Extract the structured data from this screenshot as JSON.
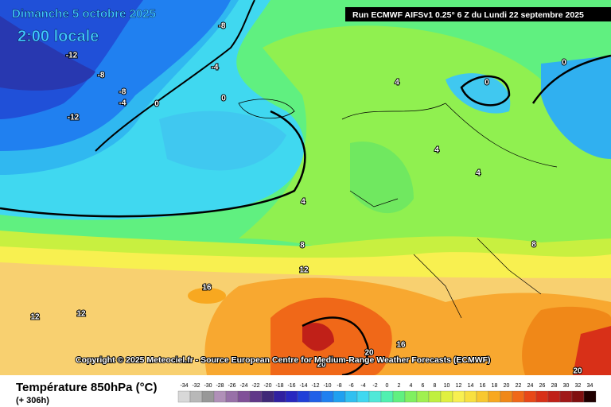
{
  "header": {
    "date": "Dimanche 5 octobre 2025",
    "time": "2:00 locale",
    "run": "Run ECMWF AIFSv1 0.25° 6 Z du Lundi 22 septembre 2025"
  },
  "copyright": "Copyright © 2025 Meteociel.fr - Source European Centre for Medium-Range Weather Forecasts (ECMWF)",
  "footer": {
    "title": "Température 850hPa (°C)",
    "lead": "(+ 306h)"
  },
  "contour_labels": [
    -8,
    -12,
    -8,
    -4,
    -8,
    -4,
    0,
    -12,
    0,
    4,
    0,
    0,
    4,
    4,
    4,
    8,
    8,
    12,
    16,
    12,
    12,
    16,
    20,
    20,
    20
  ],
  "scale": {
    "ticks": [
      -34,
      -32,
      -30,
      -28,
      -26,
      -24,
      -22,
      -20,
      -18,
      -16,
      -14,
      -12,
      -10,
      -8,
      -6,
      -4,
      -2,
      0,
      2,
      4,
      6,
      8,
      10,
      12,
      14,
      16,
      18,
      20,
      22,
      24,
      26,
      28,
      30,
      32,
      34
    ],
    "colors": [
      "#d8d8d8",
      "#b8b8b8",
      "#989898",
      "#b090b8",
      "#9870a8",
      "#805098",
      "#603888",
      "#402878",
      "#3020a0",
      "#2828c0",
      "#2040d8",
      "#2060e8",
      "#2080f0",
      "#20a0f0",
      "#30c0f0",
      "#40d8f0",
      "#50e8d8",
      "#50f0b0",
      "#60f080",
      "#80f060",
      "#a0f050",
      "#c0f040",
      "#e0f040",
      "#f8f050",
      "#f8e040",
      "#f8c830",
      "#f8a820",
      "#f08818",
      "#f06818",
      "#e84818",
      "#d83018",
      "#c02018",
      "#a01818",
      "#801010",
      "#200000"
    ]
  }
}
